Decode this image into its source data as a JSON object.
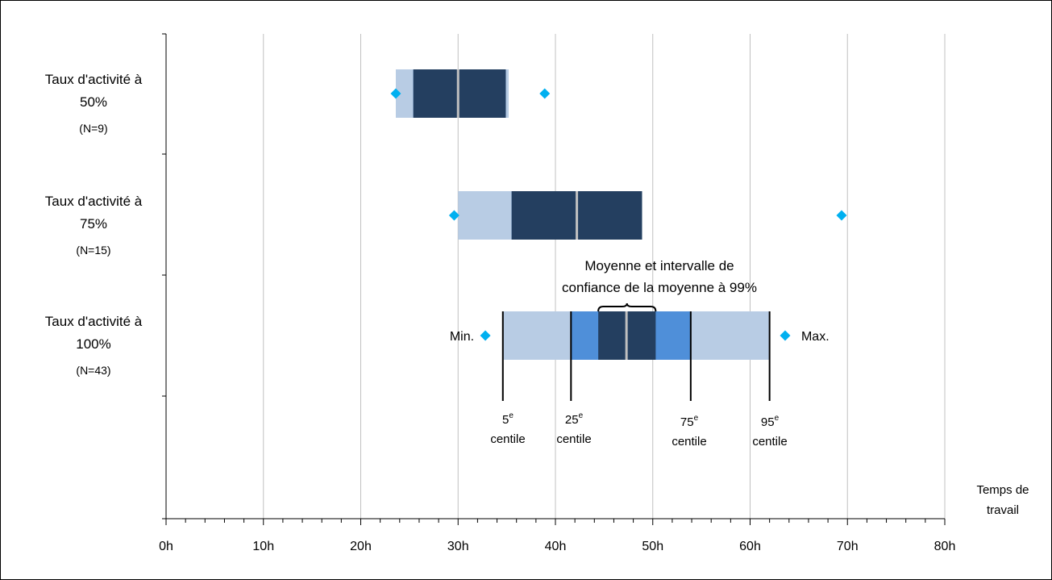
{
  "chart_data": {
    "type": "box",
    "orientation": "horizontal",
    "xlim": [
      0,
      80
    ],
    "x_ticks": [
      "0h",
      "10h",
      "20h",
      "30h",
      "40h",
      "50h",
      "60h",
      "70h",
      "80h"
    ],
    "x_label": [
      "Temps de",
      "travail"
    ],
    "grid": true,
    "categories": [
      {
        "label": [
          "Taux d'activité à",
          "50%"
        ],
        "n": "(N=9)",
        "min": 23.6,
        "p5": 23.6,
        "p25": 25.4,
        "ci_low": 25.4,
        "mean": 30.0,
        "ci_high": 34.9,
        "p75": 34.9,
        "p95": 35.2,
        "max": 38.9
      },
      {
        "label": [
          "Taux d'activité à",
          "75%"
        ],
        "n": "(N=15)",
        "min": 29.6,
        "p5": 30.0,
        "p25": 35.5,
        "ci_low": 35.5,
        "mean": 42.2,
        "ci_high": 48.9,
        "p75": 48.9,
        "p95": 48.9,
        "max": 69.4
      },
      {
        "label": [
          "Taux d'activité à",
          "100%"
        ],
        "n": "(N=43)",
        "min": 32.8,
        "p5": 34.6,
        "p25": 41.6,
        "ci_low": 44.4,
        "mean": 47.3,
        "ci_high": 50.3,
        "p75": 53.9,
        "p95": 62.0,
        "max": 63.6
      }
    ],
    "annotations": {
      "mean_ci": [
        "Moyenne et intervalle de",
        "confiance de la moyenne à 99%"
      ],
      "min": "Min.",
      "max": "Max.",
      "percentiles": [
        {
          "value": 5,
          "sup": "e",
          "word": "centile"
        },
        {
          "value": 25,
          "sup": "e",
          "word": "centile"
        },
        {
          "value": 75,
          "sup": "e",
          "word": "centile"
        },
        {
          "value": 95,
          "sup": "e",
          "word": "centile"
        }
      ]
    },
    "colors": {
      "outer": "#b8cce4",
      "inner": "#4f8fd9",
      "ci": "#243f60",
      "mean": "#c0c0c0",
      "marker": "#00b0f0",
      "grid": "#c0c0c0"
    }
  }
}
